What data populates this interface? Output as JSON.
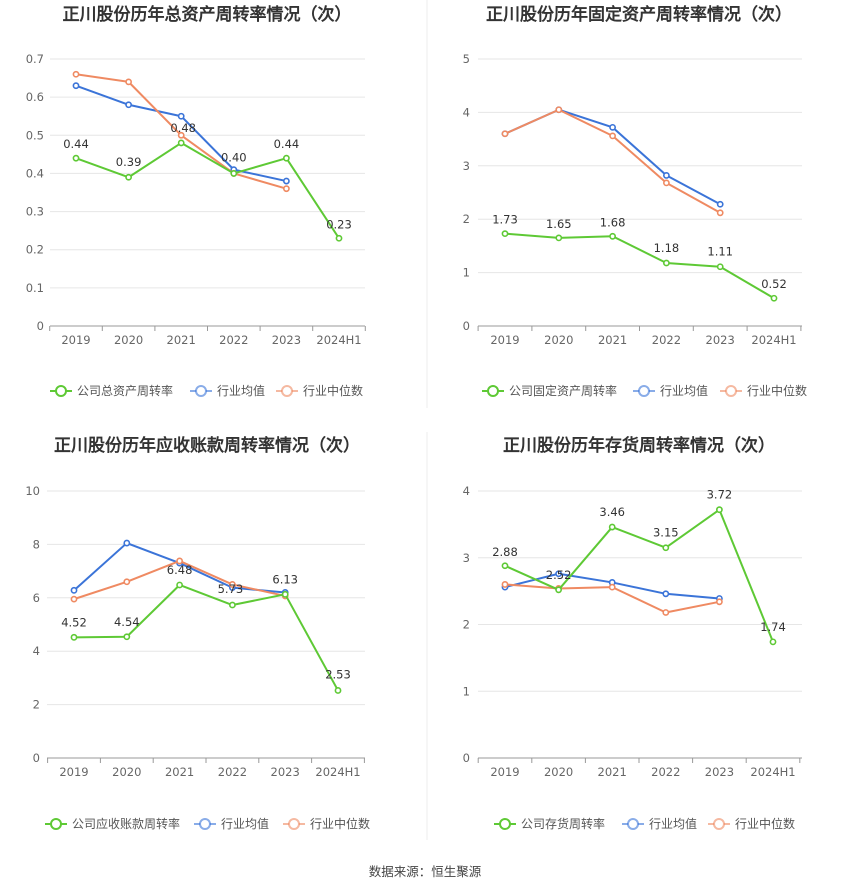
{
  "footer": {
    "source": "数据来源：恒生聚源"
  },
  "colors": {
    "company": "#5ec935",
    "industry_avg": "#3b74d8",
    "industry_median": "#ef8a62",
    "grid": "#e6e6e6",
    "axis": "#999999"
  },
  "chart_data": [
    {
      "type": "line",
      "title": "正川股份历年总资产周转率情况（次）",
      "categories": [
        "2019",
        "2020",
        "2021",
        "2022",
        "2023",
        "2024H1"
      ],
      "ylim": [
        0,
        0.7
      ],
      "yticks": [
        "0",
        "0.1",
        "0.2",
        "0.3",
        "0.4",
        "0.5",
        "0.6",
        "0.7"
      ],
      "grid": true,
      "legend_position": "bottom",
      "series": [
        {
          "name": "公司总资产周转率",
          "color": "#5ec935",
          "values": [
            0.44,
            0.39,
            0.48,
            0.4,
            0.44,
            0.23
          ],
          "labels": [
            "0.44",
            "0.39",
            "0.48",
            "0.40",
            "0.44",
            "0.23"
          ]
        },
        {
          "name": "行业均值",
          "color": "#3b74d8",
          "values": [
            0.63,
            0.58,
            0.55,
            0.41,
            0.38,
            null
          ]
        },
        {
          "name": "行业中位数",
          "color": "#ef8a62",
          "values": [
            0.66,
            0.64,
            0.5,
            0.4,
            0.36,
            null
          ]
        }
      ]
    },
    {
      "type": "line",
      "title": "正川股份历年固定资产周转率情况（次）",
      "categories": [
        "2019",
        "2020",
        "2021",
        "2022",
        "2023",
        "2024H1"
      ],
      "ylim": [
        0,
        5
      ],
      "yticks": [
        "0",
        "1",
        "2",
        "3",
        "4",
        "5"
      ],
      "grid": true,
      "legend_position": "bottom",
      "series": [
        {
          "name": "公司固定资产周转率",
          "color": "#5ec935",
          "values": [
            1.73,
            1.65,
            1.68,
            1.18,
            1.11,
            0.52
          ],
          "labels": [
            "1.73",
            "1.65",
            "1.68",
            "1.18",
            "1.11",
            "0.52"
          ]
        },
        {
          "name": "行业均值",
          "color": "#3b74d8",
          "values": [
            3.6,
            4.05,
            3.72,
            2.82,
            2.28,
            null
          ]
        },
        {
          "name": "行业中位数",
          "color": "#ef8a62",
          "values": [
            3.6,
            4.05,
            3.56,
            2.68,
            2.12,
            null
          ]
        }
      ]
    },
    {
      "type": "line",
      "title": "正川股份历年应收账款周转率情况（次）",
      "categories": [
        "2019",
        "2020",
        "2021",
        "2022",
        "2023",
        "2024H1"
      ],
      "ylim": [
        0,
        10
      ],
      "yticks": [
        "0",
        "2",
        "4",
        "6",
        "8",
        "10"
      ],
      "grid": true,
      "legend_position": "bottom",
      "series": [
        {
          "name": "公司应收账款周转率",
          "color": "#5ec935",
          "values": [
            4.52,
            4.54,
            6.48,
            5.73,
            6.13,
            2.53
          ],
          "labels": [
            "4.52",
            "4.54",
            "6.48",
            "5.73",
            "6.13",
            "2.53"
          ]
        },
        {
          "name": "行业均值",
          "color": "#3b74d8",
          "values": [
            6.28,
            8.05,
            7.3,
            6.38,
            6.2,
            null
          ]
        },
        {
          "name": "行业中位数",
          "color": "#ef8a62",
          "values": [
            5.95,
            6.6,
            7.38,
            6.5,
            6.07,
            null
          ]
        }
      ]
    },
    {
      "type": "line",
      "title": "正川股份历年存货周转率情况（次）",
      "categories": [
        "2019",
        "2020",
        "2021",
        "2022",
        "2023",
        "2024H1"
      ],
      "ylim": [
        0,
        4
      ],
      "yticks": [
        "0",
        "1",
        "2",
        "3",
        "4"
      ],
      "grid": true,
      "legend_position": "bottom",
      "series": [
        {
          "name": "公司存货周转率",
          "color": "#5ec935",
          "values": [
            2.88,
            2.52,
            3.46,
            3.15,
            3.72,
            1.74
          ],
          "labels": [
            "2.88",
            "2.52",
            "3.46",
            "3.15",
            "3.72",
            "1.74"
          ]
        },
        {
          "name": "行业均值",
          "color": "#3b74d8",
          "values": [
            2.56,
            2.76,
            2.63,
            2.46,
            2.39,
            null
          ]
        },
        {
          "name": "行业中位数",
          "color": "#ef8a62",
          "values": [
            2.6,
            2.54,
            2.56,
            2.18,
            2.34,
            null
          ]
        }
      ]
    }
  ]
}
